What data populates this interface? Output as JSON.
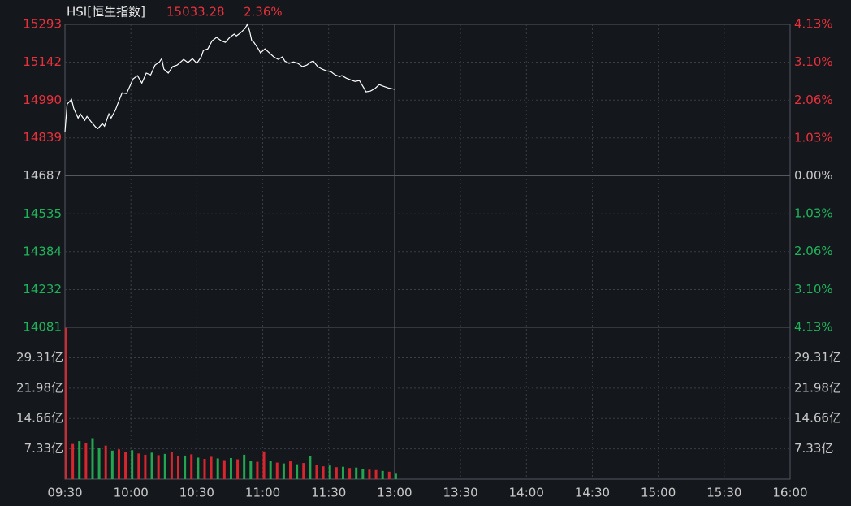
{
  "chart_data": {
    "type": "line",
    "title": "HSI[恒生指数]",
    "last_price": "15033.28",
    "change_pct": "2.36%",
    "color": "#ffffff",
    "x": [
      0,
      1,
      3,
      4,
      6,
      7,
      9,
      10,
      12,
      14,
      15,
      17,
      18,
      20,
      21,
      23,
      24,
      26,
      28,
      30,
      31,
      33,
      35,
      37,
      39,
      41,
      43,
      44,
      45,
      47,
      49,
      51,
      52,
      54,
      56,
      58,
      60,
      62,
      63,
      65,
      67,
      68,
      69,
      71,
      73,
      75,
      77,
      78,
      80,
      82,
      83,
      84,
      85,
      86,
      88,
      89,
      91,
      93,
      95,
      97,
      99,
      100,
      102,
      104,
      106,
      108,
      110,
      112,
      113,
      115,
      117,
      119,
      121,
      123,
      125,
      126,
      128,
      130,
      132,
      134,
      136,
      137,
      139,
      141,
      143,
      145,
      147,
      150
    ],
    "values": [
      14863,
      14974,
      14993,
      14957,
      14918,
      14935,
      14909,
      14925,
      14902,
      14882,
      14876,
      14896,
      14886,
      14935,
      14918,
      14951,
      14974,
      15019,
      15016,
      15055,
      15075,
      15088,
      15058,
      15098,
      15091,
      15130,
      15143,
      15156,
      15114,
      15098,
      15124,
      15130,
      15137,
      15153,
      15140,
      15156,
      15137,
      15163,
      15189,
      15195,
      15228,
      15234,
      15241,
      15228,
      15221,
      15241,
      15254,
      15247,
      15260,
      15277,
      15293,
      15267,
      15228,
      15221,
      15195,
      15179,
      15195,
      15179,
      15163,
      15153,
      15163,
      15146,
      15137,
      15143,
      15137,
      15124,
      15130,
      15143,
      15146,
      15124,
      15114,
      15107,
      15104,
      15091,
      15084,
      15088,
      15078,
      15071,
      15065,
      15068,
      15039,
      15023,
      15026,
      15036,
      15052,
      15045,
      15039,
      15033.28
    ],
    "xlim": [
      0,
      330
    ],
    "xticks": [
      {
        "value": 0,
        "label": "09:30"
      },
      {
        "value": 30,
        "label": "10:00"
      },
      {
        "value": 60,
        "label": "10:30"
      },
      {
        "value": 90,
        "label": "11:00"
      },
      {
        "value": 120,
        "label": "11:30"
      },
      {
        "value": 150,
        "label": "13:00"
      },
      {
        "value": 180,
        "label": "13:30"
      },
      {
        "value": 210,
        "label": "14:00"
      },
      {
        "value": 240,
        "label": "14:30"
      },
      {
        "value": 270,
        "label": "15:00"
      },
      {
        "value": 300,
        "label": "15:30"
      },
      {
        "value": 330,
        "label": "16:00"
      }
    ],
    "ylim": [
      14081,
      15293
    ],
    "yticks": [
      15293,
      15142,
      14990,
      14839,
      14687,
      14535,
      14384,
      14232,
      14081
    ],
    "ytick_colors": [
      "#e8313b",
      "#e8313b",
      "#e8313b",
      "#e8313b",
      "#c8c8c8",
      "#1fb35a",
      "#1fb35a",
      "#1fb35a",
      "#1fb35a"
    ],
    "y2lim": [
      -4.13,
      4.13
    ],
    "y2ticks": [
      {
        "value": 4.13,
        "label": "4.13%"
      },
      {
        "value": 3.1,
        "label": "3.10%"
      },
      {
        "value": 2.06,
        "label": "2.06%"
      },
      {
        "value": 1.03,
        "label": "1.03%"
      },
      {
        "value": 0,
        "label": "0.00%"
      },
      {
        "value": -1.03,
        "label": "1.03%"
      },
      {
        "value": -2.06,
        "label": "2.06%"
      },
      {
        "value": -3.1,
        "label": "3.10%"
      },
      {
        "value": -4.13,
        "label": "4.13%"
      }
    ],
    "grid": true,
    "volume": {
      "ylim": [
        0,
        36.65
      ],
      "yticks": [
        {
          "value": 29.31,
          "label": "29.31亿"
        },
        {
          "value": 21.98,
          "label": "21.98亿"
        },
        {
          "value": 14.66,
          "label": "14.66亿"
        },
        {
          "value": 7.33,
          "label": "7.33亿"
        }
      ],
      "x": [
        0,
        3,
        6,
        9,
        12,
        15,
        18,
        21,
        24,
        27,
        30,
        33,
        36,
        39,
        42,
        45,
        48,
        51,
        54,
        57,
        60,
        63,
        66,
        69,
        72,
        75,
        78,
        81,
        84,
        87,
        90,
        93,
        96,
        99,
        102,
        105,
        108,
        111,
        114,
        117,
        120,
        123,
        126,
        129,
        132,
        135,
        138,
        141,
        144,
        147,
        150
      ],
      "values": [
        36.5,
        8.5,
        9.2,
        8.8,
        9.9,
        7.6,
        8.1,
        6.9,
        7.2,
        6.5,
        7.0,
        6.2,
        5.9,
        6.4,
        5.8,
        6.1,
        6.6,
        5.5,
        5.7,
        6.0,
        5.2,
        4.9,
        5.4,
        5.0,
        4.6,
        5.1,
        4.8,
        5.9,
        4.4,
        4.2,
        6.7,
        4.5,
        4.0,
        3.8,
        4.3,
        3.6,
        3.9,
        5.6,
        3.4,
        3.1,
        3.3,
        2.9,
        3.0,
        2.7,
        2.8,
        2.5,
        2.3,
        2.2,
        2.0,
        1.8,
        1.5
      ],
      "colors": [
        "#d8262e",
        "#d8262e",
        "#22a650",
        "#d8262e",
        "#22a650",
        "#22a650",
        "#d8262e",
        "#22a650",
        "#d8262e",
        "#d8262e",
        "#22a650",
        "#d8262e",
        "#d8262e",
        "#22a650",
        "#d8262e",
        "#22a650",
        "#d8262e",
        "#d8262e",
        "#22a650",
        "#d8262e",
        "#22a650",
        "#d8262e",
        "#d8262e",
        "#22a650",
        "#d8262e",
        "#22a650",
        "#d8262e",
        "#22a650",
        "#22a650",
        "#d8262e",
        "#d8262e",
        "#22a650",
        "#d8262e",
        "#22a650",
        "#d8262e",
        "#22a650",
        "#d8262e",
        "#22a650",
        "#d8262e",
        "#d8262e",
        "#22a650",
        "#d8262e",
        "#22a650",
        "#d8262e",
        "#22a650",
        "#22a650",
        "#d8262e",
        "#d8262e",
        "#22a650",
        "#d8262e",
        "#22a650"
      ]
    }
  }
}
